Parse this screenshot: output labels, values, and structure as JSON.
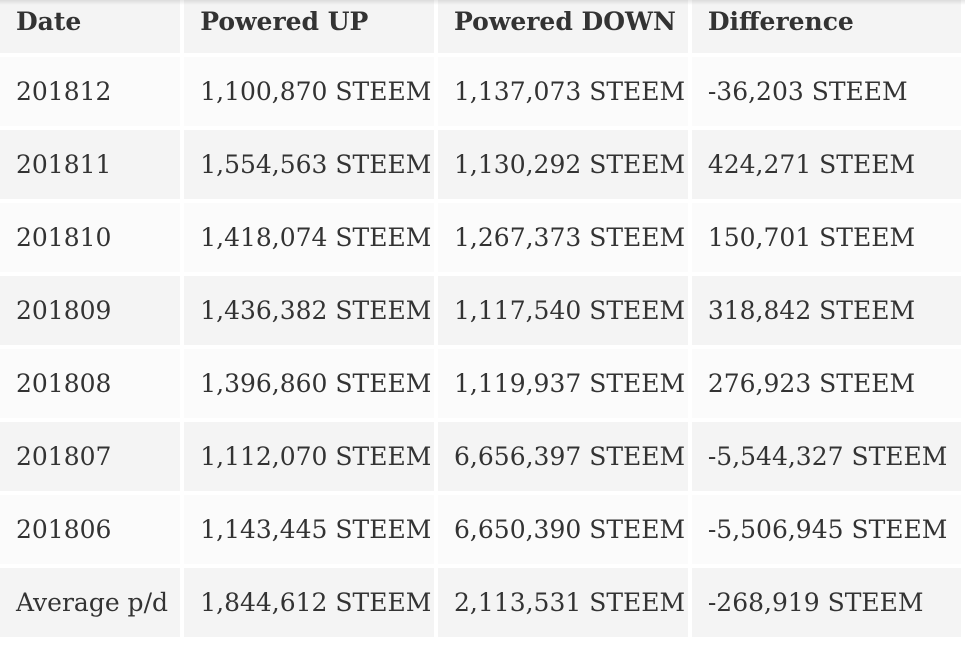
{
  "table": {
    "headers": [
      "Date",
      "Powered UP",
      "Powered DOWN",
      "Difference"
    ],
    "rows": [
      [
        "201812",
        "1,100,870 STEEM",
        "1,137,073 STEEM",
        "-36,203 STEEM"
      ],
      [
        "201811",
        "1,554,563 STEEM",
        "1,130,292 STEEM",
        "424,271 STEEM"
      ],
      [
        "201810",
        "1,418,074 STEEM",
        "1,267,373 STEEM",
        "150,701 STEEM"
      ],
      [
        "201809",
        "1,436,382 STEEM",
        "1,117,540 STEEM",
        "318,842 STEEM"
      ],
      [
        "201808",
        "1,396,860 STEEM",
        "1,119,937 STEEM",
        "276,923 STEEM"
      ],
      [
        "201807",
        "1,112,070 STEEM",
        "6,656,397 STEEM",
        "-5,544,327 STEEM"
      ],
      [
        "201806",
        "1,143,445 STEEM",
        "6,650,390 STEEM",
        "-5,506,945 STEEM"
      ],
      [
        "Average p/d",
        "1,844,612 STEEM",
        "2,113,531 STEEM",
        "-268,919 STEEM"
      ]
    ]
  },
  "colors": {
    "row_dark": "#f4f4f4",
    "row_light": "#fbfbfb",
    "text": "#333333"
  }
}
